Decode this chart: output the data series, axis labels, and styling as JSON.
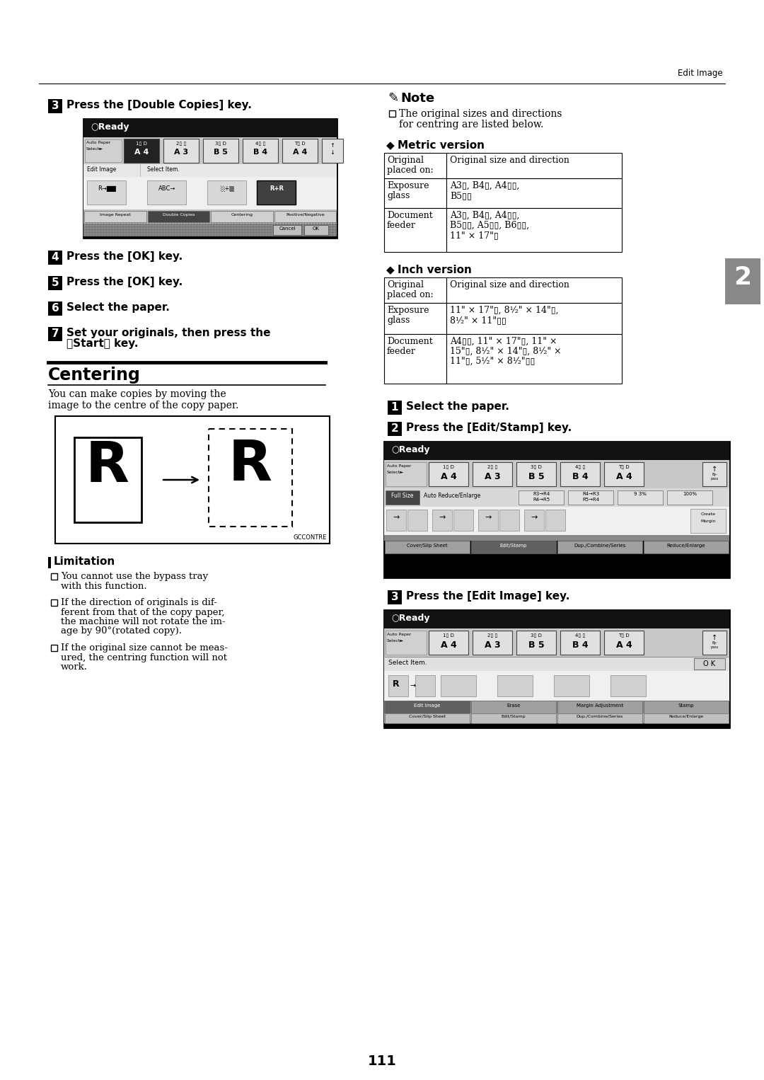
{
  "page_title": "Edit Image",
  "page_number": "111",
  "tab_label": "2",
  "step3_title": "Press the [Double Copies] key.",
  "step4_title": "Press the [OK] key.",
  "step5_title": "Press the [OK] key.",
  "step6_title": "Select the paper.",
  "step7_line1": "Set your originals, then press the",
  "step7_line2": "【Start】 key.",
  "centering_title": "Centering",
  "centering_desc_line1": "You can make copies by moving the",
  "centering_desc_line2": "image to the centre of the copy paper.",
  "limitation_title": "Limitation",
  "limitation_items": [
    [
      "You cannot use the bypass tray",
      "with this function."
    ],
    [
      "If the direction of originals is dif-",
      "ferent from that of the copy paper,",
      "the machine will not rotate the im-",
      "age by 90°(rotated copy)."
    ],
    [
      "If the original size cannot be meas-",
      "ured, the centring function will not",
      "work."
    ]
  ],
  "note_title": "Note",
  "note_line1": "The original sizes and directions",
  "note_line2": "for centring are listed below.",
  "metric_title": "Metric version",
  "metric_rows": [
    [
      "Original\nplaced on:",
      "Original size and direction"
    ],
    [
      "Exposure\nglass",
      "A3▯, B4▯, A4▯▯,\nB5▯▯"
    ],
    [
      "Document\nfeeder",
      "A3▯, B4▯, A4▯▯,\nB5▯▯, A5▯▯, B6▯▯,\n11\" × 17\"▯"
    ]
  ],
  "inch_title": "Inch version",
  "inch_rows": [
    [
      "Original\nplaced on:",
      "Original size and direction"
    ],
    [
      "Exposure\nglass",
      "11\" × 17\"▯, 8¹⁄₂\" × 14\"▯,\n8¹⁄₂\" × 11\"▯▯"
    ],
    [
      "Document\nfeeder",
      "A4▯▯, 11\" × 17\"▯, 11\" ×\n15\"▯, 8¹⁄₂\" × 14\"▯, 8¹⁄₂\" ×\n11\"▯, 5¹⁄₂\" × 8¹⁄₂\"▯▯"
    ]
  ],
  "right_step1": "Select the paper.",
  "right_step2": "Press the [Edit/Stamp] key.",
  "right_step3": "Press the [Edit Image] key.",
  "bg_color": "#ffffff"
}
